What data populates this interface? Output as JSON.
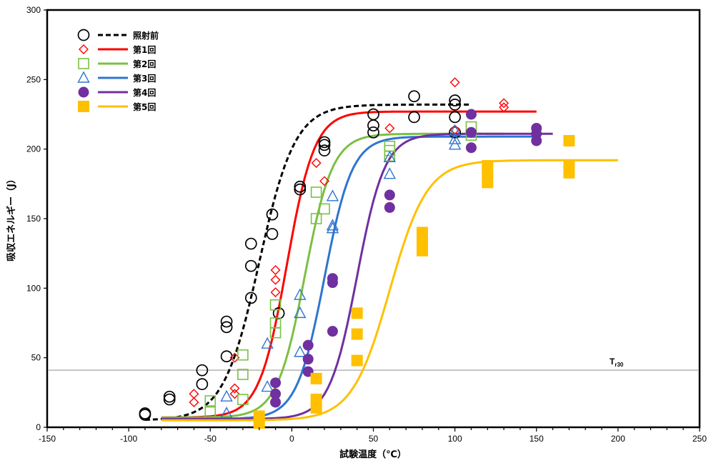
{
  "chart_data": {
    "type": "scatter",
    "xlabel": "試験温度（℃）",
    "ylabel": "吸収エネルギー（J）",
    "xlim": [
      -150,
      250
    ],
    "ylim": [
      0,
      300
    ],
    "xticks": [
      -150,
      -100,
      -50,
      0,
      50,
      100,
      150,
      200,
      250
    ],
    "yticks": [
      0,
      50,
      100,
      150,
      200,
      250,
      300
    ],
    "xticks_minor_step": 10,
    "grid": false,
    "legend": "top-left",
    "reference_line": {
      "y": 41,
      "label": "T",
      "label_sub": "r30"
    },
    "series": [
      {
        "name": "照射前",
        "marker": "circle-open",
        "color": "#000000",
        "line": "dashed",
        "fit": {
          "lower": 5,
          "upper": 232,
          "t0": -20,
          "c": 22,
          "xrange": [
            -90,
            110
          ]
        },
        "points": [
          [
            -90,
            9
          ],
          [
            -90,
            10
          ],
          [
            -75,
            22
          ],
          [
            -75,
            20
          ],
          [
            -55,
            41
          ],
          [
            -55,
            31
          ],
          [
            -40,
            76
          ],
          [
            -40,
            72
          ],
          [
            -40,
            51
          ],
          [
            -25,
            132
          ],
          [
            -25,
            116
          ],
          [
            -25,
            93
          ],
          [
            -12,
            153
          ],
          [
            -12,
            139
          ],
          [
            -8,
            82
          ],
          [
            5,
            173
          ],
          [
            5,
            171
          ],
          [
            20,
            205
          ],
          [
            20,
            203
          ],
          [
            20,
            199
          ],
          [
            50,
            225
          ],
          [
            50,
            217
          ],
          [
            50,
            212
          ],
          [
            75,
            238
          ],
          [
            75,
            223
          ],
          [
            100,
            235
          ],
          [
            100,
            232
          ],
          [
            100,
            223
          ],
          [
            100,
            212
          ]
        ]
      },
      {
        "name": "第1回",
        "marker": "diamond-open",
        "color": "#ff0000",
        "line": "solid",
        "fit": {
          "lower": 7,
          "upper": 227,
          "t0": -3,
          "c": 17,
          "xrange": [
            -80,
            150
          ]
        },
        "points": [
          [
            -60,
            24
          ],
          [
            -60,
            18
          ],
          [
            -35,
            50
          ],
          [
            -35,
            28
          ],
          [
            -35,
            24
          ],
          [
            -10,
            113
          ],
          [
            -10,
            106
          ],
          [
            -10,
            97
          ],
          [
            15,
            190
          ],
          [
            20,
            177
          ],
          [
            60,
            215
          ],
          [
            100,
            248
          ],
          [
            100,
            214
          ],
          [
            130,
            233
          ],
          [
            130,
            230
          ]
        ]
      },
      {
        "name": "第2回",
        "marker": "square-open",
        "color": "#7ac143",
        "line": "solid",
        "fit": {
          "lower": 7,
          "upper": 211,
          "t0": 8,
          "c": 17,
          "xrange": [
            -80,
            130
          ]
        },
        "points": [
          [
            -50,
            19
          ],
          [
            -50,
            11
          ],
          [
            -30,
            52
          ],
          [
            -30,
            38
          ],
          [
            -30,
            20
          ],
          [
            -10,
            88
          ],
          [
            -10,
            75
          ],
          [
            -10,
            68
          ],
          [
            15,
            169
          ],
          [
            15,
            150
          ],
          [
            20,
            157
          ],
          [
            60,
            202
          ],
          [
            60,
            199
          ],
          [
            60,
            195
          ],
          [
            110,
            216
          ],
          [
            110,
            210
          ]
        ]
      },
      {
        "name": "第3回",
        "marker": "triangle-open",
        "color": "#2e75d0",
        "line": "solid",
        "fit": {
          "lower": 6,
          "upper": 209,
          "t0": 20,
          "c": 17,
          "xrange": [
            -80,
            150
          ]
        },
        "points": [
          [
            -40,
            22
          ],
          [
            -40,
            10
          ],
          [
            -15,
            60
          ],
          [
            -15,
            29
          ],
          [
            5,
            95
          ],
          [
            5,
            82
          ],
          [
            5,
            54
          ],
          [
            25,
            166
          ],
          [
            25,
            145
          ],
          [
            25,
            143
          ],
          [
            60,
            194
          ],
          [
            60,
            182
          ],
          [
            100,
            213
          ],
          [
            100,
            207
          ],
          [
            100,
            203
          ]
        ]
      },
      {
        "name": "第4回",
        "marker": "circle-filled",
        "color": "#7030a0",
        "line": "solid",
        "fit": {
          "lower": 6,
          "upper": 211,
          "t0": 40,
          "c": 17,
          "xrange": [
            -80,
            160
          ]
        },
        "points": [
          [
            -10,
            32
          ],
          [
            -10,
            24
          ],
          [
            -10,
            18
          ],
          [
            10,
            59
          ],
          [
            10,
            49
          ],
          [
            10,
            40
          ],
          [
            25,
            107
          ],
          [
            25,
            104
          ],
          [
            25,
            69
          ],
          [
            60,
            167
          ],
          [
            60,
            158
          ],
          [
            110,
            225
          ],
          [
            110,
            212
          ],
          [
            110,
            201
          ],
          [
            150,
            215
          ],
          [
            150,
            211
          ],
          [
            150,
            206
          ]
        ]
      },
      {
        "name": "第5回",
        "marker": "square-filled",
        "color": "#ffc000",
        "line": "solid",
        "fit": {
          "lower": 5,
          "upper": 192,
          "t0": 60,
          "c": 23,
          "xrange": [
            -80,
            200
          ]
        },
        "points": [
          [
            -20,
            8
          ],
          [
            -20,
            3
          ],
          [
            15,
            35
          ],
          [
            15,
            20
          ],
          [
            15,
            14
          ],
          [
            40,
            82
          ],
          [
            40,
            67
          ],
          [
            40,
            48
          ],
          [
            80,
            140
          ],
          [
            80,
            134
          ],
          [
            80,
            127
          ],
          [
            120,
            188
          ],
          [
            120,
            184
          ],
          [
            120,
            176
          ],
          [
            170,
            206
          ],
          [
            170,
            188
          ],
          [
            170,
            183
          ]
        ]
      }
    ]
  }
}
